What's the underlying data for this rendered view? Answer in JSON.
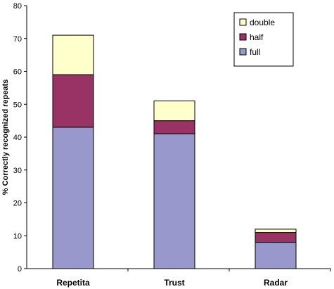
{
  "chart_data": {
    "type": "bar",
    "stacked": true,
    "categories": [
      "Repetita",
      "Trust",
      "Radar"
    ],
    "series": [
      {
        "name": "full",
        "values": [
          43,
          41,
          8
        ],
        "color": "#9898cc"
      },
      {
        "name": "half",
        "values": [
          16,
          4,
          3
        ],
        "color": "#993366"
      },
      {
        "name": "double",
        "values": [
          12,
          6,
          1
        ],
        "color": "#ffffcc"
      }
    ],
    "legend_order": [
      "double",
      "half",
      "full"
    ],
    "ylabel": "% Correctly recognized repeats",
    "xlabel": "",
    "ylim": [
      0,
      80
    ],
    "yticks": [
      0,
      10,
      20,
      30,
      40,
      50,
      60,
      70,
      80
    ],
    "grid": false,
    "legend_position": "top-right"
  }
}
